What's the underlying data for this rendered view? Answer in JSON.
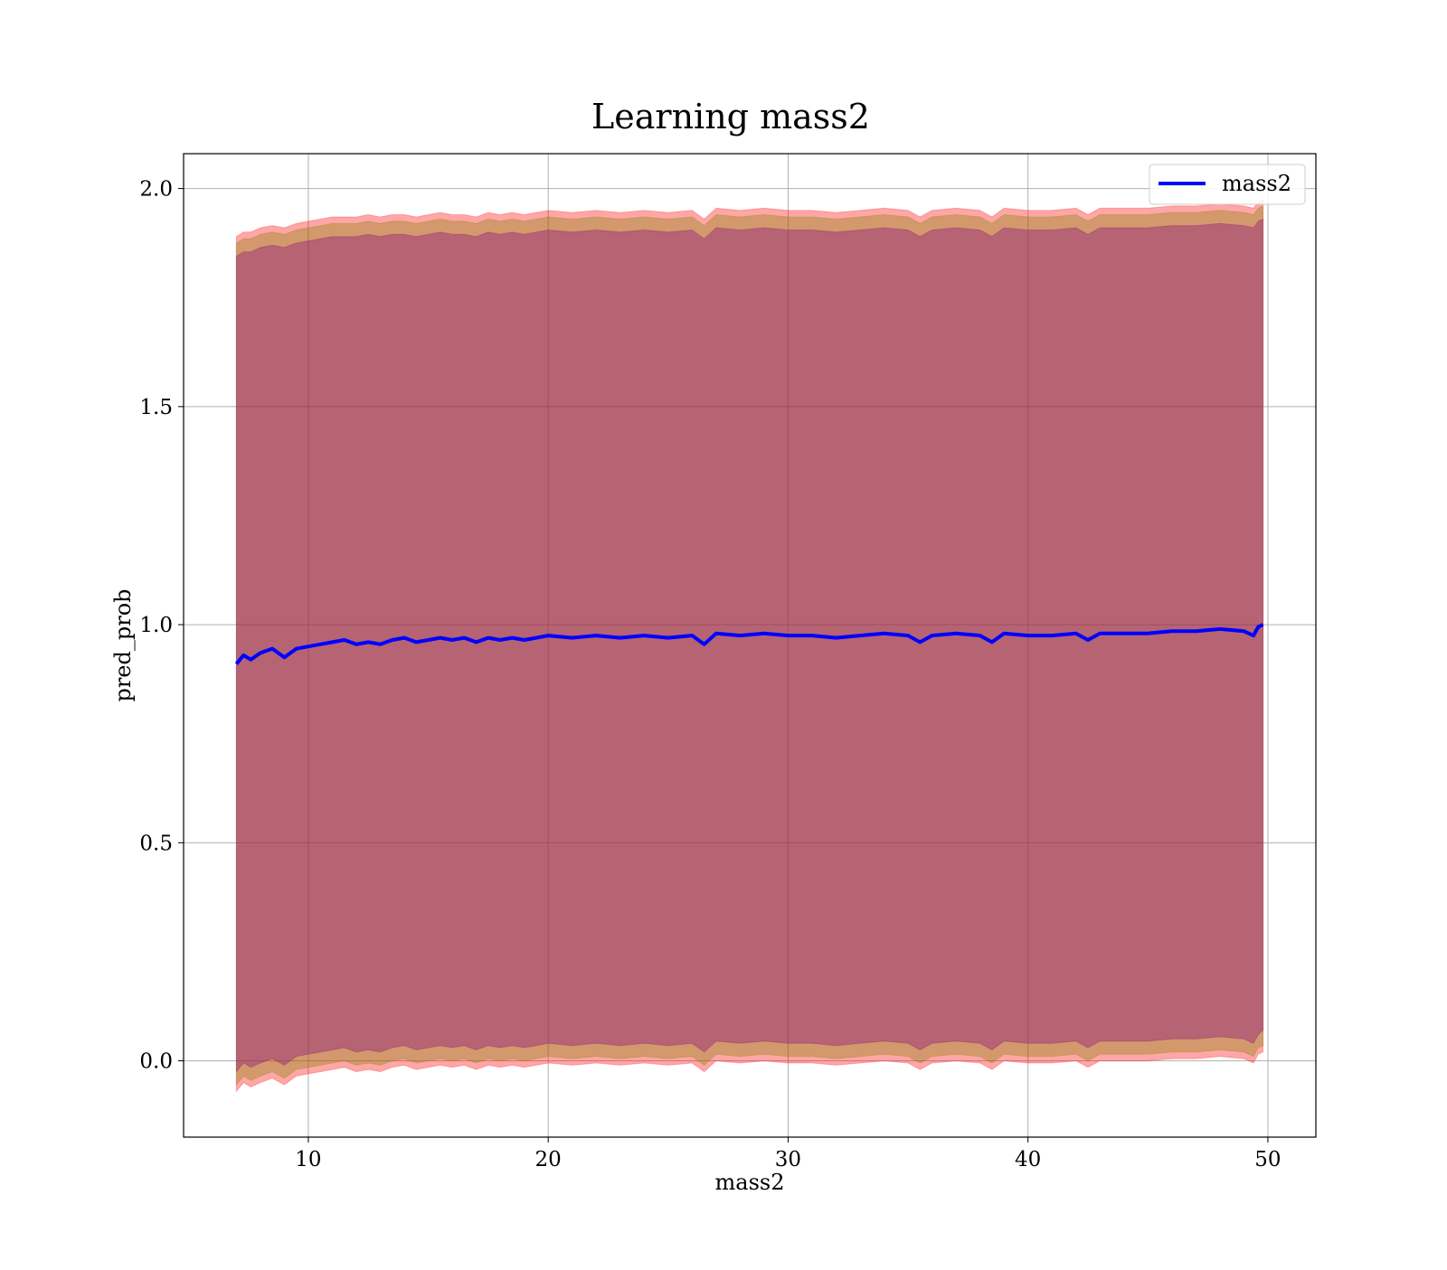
{
  "chart_data": {
    "type": "area",
    "title": "Learning mass2",
    "xlabel": "mass2",
    "ylabel": "pred_prob",
    "xlim": [
      4.8,
      52.0
    ],
    "ylim": [
      -0.175,
      2.08
    ],
    "xticks": [
      10,
      20,
      30,
      40,
      50
    ],
    "xtick_labels": [
      "10",
      "20",
      "30",
      "40",
      "50"
    ],
    "yticks": [
      0.0,
      0.5,
      1.0,
      1.5,
      2.0
    ],
    "ytick_labels": [
      "0.0",
      "0.5",
      "1.0",
      "1.5",
      "2.0"
    ],
    "grid": true,
    "legend": {
      "position": "top-right",
      "entries": [
        "mass2"
      ]
    },
    "x": [
      7.0,
      7.3,
      7.6,
      8.0,
      8.5,
      9.0,
      9.5,
      10.0,
      10.5,
      11.0,
      11.5,
      12.0,
      12.5,
      13.0,
      13.5,
      14.0,
      14.5,
      15.0,
      15.5,
      16.0,
      16.5,
      17.0,
      17.5,
      18.0,
      18.5,
      19.0,
      19.5,
      20.0,
      21.0,
      22.0,
      23.0,
      24.0,
      25.0,
      26.0,
      26.5,
      27.0,
      28.0,
      29.0,
      30.0,
      31.0,
      32.0,
      33.0,
      34.0,
      35.0,
      35.5,
      36.0,
      37.0,
      38.0,
      38.5,
      39.0,
      40.0,
      41.0,
      42.0,
      42.5,
      43.0,
      44.0,
      45.0,
      46.0,
      47.0,
      48.0,
      49.0,
      49.4,
      49.6,
      49.8
    ],
    "series": [
      {
        "name": "mass2",
        "color": "#0000ff",
        "values": [
          0.91,
          0.93,
          0.92,
          0.935,
          0.945,
          0.925,
          0.945,
          0.95,
          0.955,
          0.96,
          0.965,
          0.955,
          0.96,
          0.955,
          0.965,
          0.97,
          0.96,
          0.965,
          0.97,
          0.965,
          0.97,
          0.96,
          0.97,
          0.965,
          0.97,
          0.965,
          0.97,
          0.975,
          0.97,
          0.975,
          0.97,
          0.975,
          0.97,
          0.975,
          0.955,
          0.98,
          0.975,
          0.98,
          0.975,
          0.975,
          0.97,
          0.975,
          0.98,
          0.975,
          0.96,
          0.975,
          0.98,
          0.975,
          0.96,
          0.98,
          0.975,
          0.975,
          0.98,
          0.965,
          0.98,
          0.98,
          0.98,
          0.985,
          0.985,
          0.99,
          0.985,
          0.975,
          0.995,
          1.0
        ]
      }
    ],
    "bands": [
      {
        "color": "#ff0000",
        "opacity": 0.35,
        "upper": [
          1.89,
          1.9,
          1.9,
          1.91,
          1.915,
          1.91,
          1.92,
          1.925,
          1.93,
          1.935,
          1.935,
          1.935,
          1.94,
          1.935,
          1.94,
          1.94,
          1.935,
          1.94,
          1.945,
          1.94,
          1.94,
          1.935,
          1.945,
          1.94,
          1.945,
          1.94,
          1.945,
          1.95,
          1.945,
          1.95,
          1.945,
          1.95,
          1.945,
          1.95,
          1.93,
          1.955,
          1.95,
          1.955,
          1.95,
          1.95,
          1.945,
          1.95,
          1.955,
          1.95,
          1.935,
          1.95,
          1.955,
          1.95,
          1.935,
          1.955,
          1.95,
          1.95,
          1.955,
          1.94,
          1.955,
          1.955,
          1.955,
          1.96,
          1.96,
          1.965,
          1.96,
          1.955,
          1.97,
          1.975
        ],
        "lower": [
          -0.07,
          -0.05,
          -0.06,
          -0.05,
          -0.04,
          -0.055,
          -0.035,
          -0.03,
          -0.025,
          -0.02,
          -0.015,
          -0.025,
          -0.02,
          -0.025,
          -0.015,
          -0.01,
          -0.02,
          -0.015,
          -0.01,
          -0.015,
          -0.01,
          -0.02,
          -0.01,
          -0.015,
          -0.01,
          -0.015,
          -0.01,
          -0.005,
          -0.01,
          -0.005,
          -0.01,
          -0.005,
          -0.01,
          -0.005,
          -0.025,
          0.0,
          -0.005,
          0.0,
          -0.005,
          -0.005,
          -0.01,
          -0.005,
          0.0,
          -0.005,
          -0.02,
          -0.005,
          0.0,
          -0.005,
          -0.02,
          0.0,
          -0.005,
          -0.005,
          0.0,
          -0.015,
          0.0,
          0.0,
          0.0,
          0.005,
          0.005,
          0.01,
          0.005,
          -0.005,
          0.015,
          0.02
        ]
      },
      {
        "color": "#808000",
        "opacity": 0.35,
        "upper": [
          1.875,
          1.885,
          1.885,
          1.895,
          1.9,
          1.895,
          1.905,
          1.91,
          1.915,
          1.92,
          1.92,
          1.92,
          1.925,
          1.92,
          1.925,
          1.925,
          1.92,
          1.925,
          1.93,
          1.925,
          1.925,
          1.92,
          1.93,
          1.925,
          1.93,
          1.925,
          1.93,
          1.935,
          1.93,
          1.935,
          1.93,
          1.935,
          1.93,
          1.935,
          1.915,
          1.94,
          1.935,
          1.94,
          1.935,
          1.935,
          1.93,
          1.935,
          1.94,
          1.935,
          1.92,
          1.935,
          1.94,
          1.935,
          1.92,
          1.94,
          1.935,
          1.935,
          1.94,
          1.925,
          1.94,
          1.94,
          1.94,
          1.945,
          1.945,
          1.95,
          1.945,
          1.94,
          1.955,
          1.96
        ],
        "lower": [
          -0.055,
          -0.035,
          -0.045,
          -0.035,
          -0.025,
          -0.04,
          -0.02,
          -0.015,
          -0.01,
          -0.005,
          0.0,
          -0.01,
          -0.005,
          -0.01,
          0.0,
          0.005,
          -0.005,
          0.0,
          0.005,
          0.0,
          0.005,
          -0.005,
          0.005,
          0.0,
          0.005,
          0.0,
          0.005,
          0.01,
          0.005,
          0.01,
          0.005,
          0.01,
          0.005,
          0.01,
          -0.01,
          0.015,
          0.01,
          0.015,
          0.01,
          0.01,
          0.005,
          0.01,
          0.015,
          0.01,
          -0.005,
          0.01,
          0.015,
          0.01,
          -0.005,
          0.015,
          0.01,
          0.01,
          0.015,
          0.0,
          0.015,
          0.015,
          0.015,
          0.02,
          0.02,
          0.025,
          0.02,
          0.01,
          0.03,
          0.035
        ]
      },
      {
        "color": "#800080",
        "opacity": 0.35,
        "upper": [
          1.845,
          1.855,
          1.855,
          1.865,
          1.87,
          1.865,
          1.875,
          1.88,
          1.885,
          1.89,
          1.89,
          1.89,
          1.895,
          1.89,
          1.895,
          1.895,
          1.89,
          1.895,
          1.9,
          1.895,
          1.895,
          1.89,
          1.9,
          1.895,
          1.9,
          1.895,
          1.9,
          1.905,
          1.9,
          1.905,
          1.9,
          1.905,
          1.9,
          1.905,
          1.885,
          1.91,
          1.905,
          1.91,
          1.905,
          1.905,
          1.9,
          1.905,
          1.91,
          1.905,
          1.89,
          1.905,
          1.91,
          1.905,
          1.89,
          1.91,
          1.905,
          1.905,
          1.91,
          1.895,
          1.91,
          1.91,
          1.91,
          1.915,
          1.915,
          1.92,
          1.915,
          1.91,
          1.925,
          1.93
        ],
        "lower": [
          -0.025,
          -0.005,
          -0.015,
          -0.005,
          0.005,
          -0.01,
          0.01,
          0.015,
          0.02,
          0.025,
          0.03,
          0.02,
          0.025,
          0.02,
          0.03,
          0.035,
          0.025,
          0.03,
          0.035,
          0.03,
          0.035,
          0.025,
          0.035,
          0.03,
          0.035,
          0.03,
          0.035,
          0.04,
          0.035,
          0.04,
          0.035,
          0.04,
          0.035,
          0.04,
          0.02,
          0.045,
          0.04,
          0.045,
          0.04,
          0.04,
          0.035,
          0.04,
          0.045,
          0.04,
          0.025,
          0.04,
          0.045,
          0.04,
          0.025,
          0.045,
          0.04,
          0.04,
          0.045,
          0.03,
          0.045,
          0.045,
          0.045,
          0.05,
          0.05,
          0.055,
          0.05,
          0.04,
          0.06,
          0.07
        ]
      }
    ]
  }
}
